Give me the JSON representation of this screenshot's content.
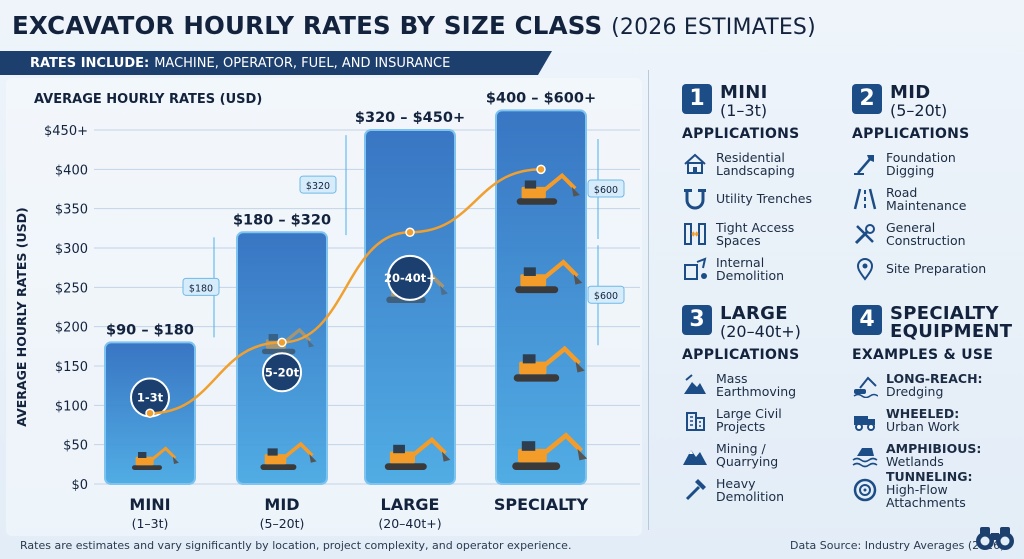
{
  "header": {
    "title_bold": "EXCAVATOR HOURLY RATES BY SIZE CLASS",
    "title_light": "(2026 ESTIMATES)",
    "subtitle_bold": "RATES INCLUDE:",
    "subtitle_rest": "MACHINE, OPERATOR, FUEL, AND INSURANCE"
  },
  "chart_data": {
    "type": "bar",
    "title": "AVERAGE HOURLY RATES (USD)",
    "ylabel": "AVERAGE HOURLY RATES (USD)",
    "ylim": [
      0,
      450
    ],
    "yticks": [
      "$0",
      "$50",
      "$100",
      "$150",
      "$200",
      "$250",
      "$300",
      "$350",
      "$400",
      "$450+"
    ],
    "tick_values": [
      0,
      50,
      100,
      150,
      200,
      250,
      300,
      350,
      400,
      450
    ],
    "categories": [
      "MINI",
      "MID",
      "LARGE",
      "SPECIALTY"
    ],
    "sublabels": [
      "(1–3t)",
      "(5–20t)",
      "(20–40t+)",
      ""
    ],
    "ranges": [
      [
        90,
        180
      ],
      [
        180,
        320
      ],
      [
        320,
        450
      ],
      [
        400,
        600
      ]
    ],
    "range_labels": [
      "$90 – $180",
      "$180 – $320",
      "$320 – $450+",
      "$400 – $600+"
    ],
    "bar_tops": [
      180,
      320,
      450,
      475
    ],
    "trend_points": [
      90,
      180,
      320,
      400
    ],
    "badges": [
      "1-3t",
      "5-20t",
      "20-40t+",
      ""
    ],
    "callouts": [
      {
        "label": "$180",
        "y": 250
      },
      {
        "label": "$320",
        "y": 380
      },
      {
        "label": "$600",
        "y": 375
      },
      {
        "label": "$600",
        "y": 240
      }
    ],
    "colors": {
      "bar_top": "#2f6fc0",
      "bar_bottom": "#49a9e3",
      "trend": "#f0a030",
      "machine": "#f39c2a"
    },
    "grid": true
  },
  "panels": [
    {
      "num": "1",
      "name": "MINI",
      "size": "(1–3t)",
      "heading": "APPLICATIONS",
      "items": [
        {
          "icon": "house-icon",
          "bold": "",
          "text": "Residential Landscaping"
        },
        {
          "icon": "pipe-icon",
          "bold": "",
          "text": "Utility Trenches"
        },
        {
          "icon": "narrow-gate-icon",
          "bold": "",
          "text": "Tight Access Spaces"
        },
        {
          "icon": "demolition-icon",
          "bold": "",
          "text": "Internal Demolition"
        }
      ]
    },
    {
      "num": "2",
      "name": "MID",
      "size": "(5–20t)",
      "heading": "APPLICATIONS",
      "items": [
        {
          "icon": "shovel-icon",
          "bold": "",
          "text": "Foundation Digging"
        },
        {
          "icon": "road-icon",
          "bold": "",
          "text": "Road Maintenance"
        },
        {
          "icon": "tools-icon",
          "bold": "",
          "text": "General Construction"
        },
        {
          "icon": "map-pin-icon",
          "bold": "",
          "text": "Site Preparation"
        }
      ]
    },
    {
      "num": "3",
      "name": "LARGE",
      "size": "(20–40t+)",
      "heading": "APPLICATIONS",
      "items": [
        {
          "icon": "earth-pile-icon",
          "bold": "",
          "text": "Mass Earthmoving"
        },
        {
          "icon": "building-icon",
          "bold": "",
          "text": "Large Civil Projects"
        },
        {
          "icon": "mountain-icon",
          "bold": "",
          "text": "Mining / Quarrying"
        },
        {
          "icon": "hammer-icon",
          "bold": "",
          "text": "Heavy Demolition"
        }
      ]
    },
    {
      "num": "4",
      "name": "SPECIALTY EQUIPMENT",
      "size": "",
      "heading": "EXAMPLES & USE",
      "items": [
        {
          "icon": "long-reach-icon",
          "bold": "LONG-REACH:",
          "text": "Dredging"
        },
        {
          "icon": "wheeled-truck-icon",
          "bold": "WHEELED:",
          "text": "Urban Work"
        },
        {
          "icon": "wetlands-icon",
          "bold": "AMPHIBIOUS:",
          "text": "Wetlands"
        },
        {
          "icon": "tunnel-icon",
          "bold": "TUNNELING:",
          "text": "High-Flow Attachments"
        }
      ]
    }
  ],
  "footer": {
    "note": "Rates are estimates and vary significantly by location, project complexity, and operator experience.",
    "source": "Data Source: Industry Averages (2026)"
  }
}
